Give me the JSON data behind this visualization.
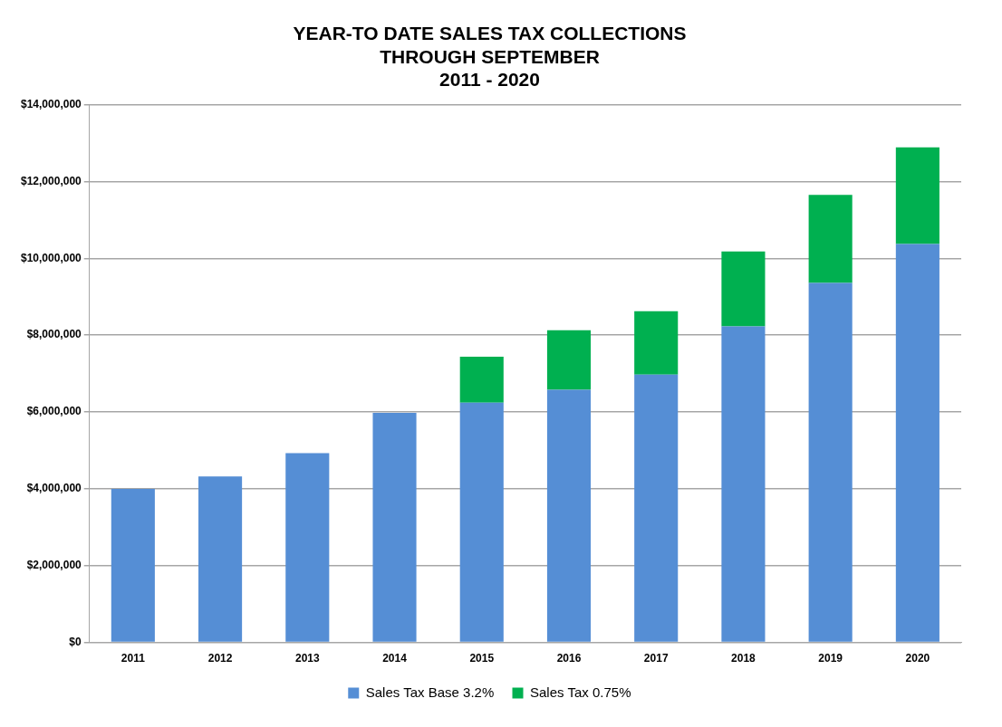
{
  "chart_data": {
    "type": "bar",
    "title": "YEAR-TO DATE SALES TAX COLLECTIONS\nTHROUGH SEPTEMBER\n2011 - 2020",
    "categories": [
      "2011",
      "2012",
      "2013",
      "2014",
      "2015",
      "2016",
      "2017",
      "2018",
      "2019",
      "2020"
    ],
    "stacked": true,
    "series": [
      {
        "name": "Sales Tax Base 3.2%",
        "color": "#558ed5",
        "values": [
          4000000,
          4320000,
          4930000,
          5980000,
          6240000,
          6580000,
          6970000,
          8230000,
          9360000,
          10370000
        ]
      },
      {
        "name": "Sales Tax 0.75%",
        "color": "#00b050",
        "values": [
          null,
          null,
          null,
          null,
          1200000,
          1550000,
          1650000,
          1950000,
          2290000,
          2520000
        ]
      }
    ],
    "ylim": [
      0,
      14000000
    ],
    "yticks": [
      {
        "value": 0,
        "label": "$0"
      },
      {
        "value": 2000000,
        "label": "$2,000,000"
      },
      {
        "value": 4000000,
        "label": "$4,000,000"
      },
      {
        "value": 6000000,
        "label": "$6,000,000"
      },
      {
        "value": 8000000,
        "label": "$8,000,000"
      },
      {
        "value": 10000000,
        "label": "$10,000,000"
      },
      {
        "value": 12000000,
        "label": "$12,000,000"
      },
      {
        "value": 14000000,
        "label": "$14,000,000"
      }
    ],
    "grid": "y",
    "legend": "bottom"
  }
}
